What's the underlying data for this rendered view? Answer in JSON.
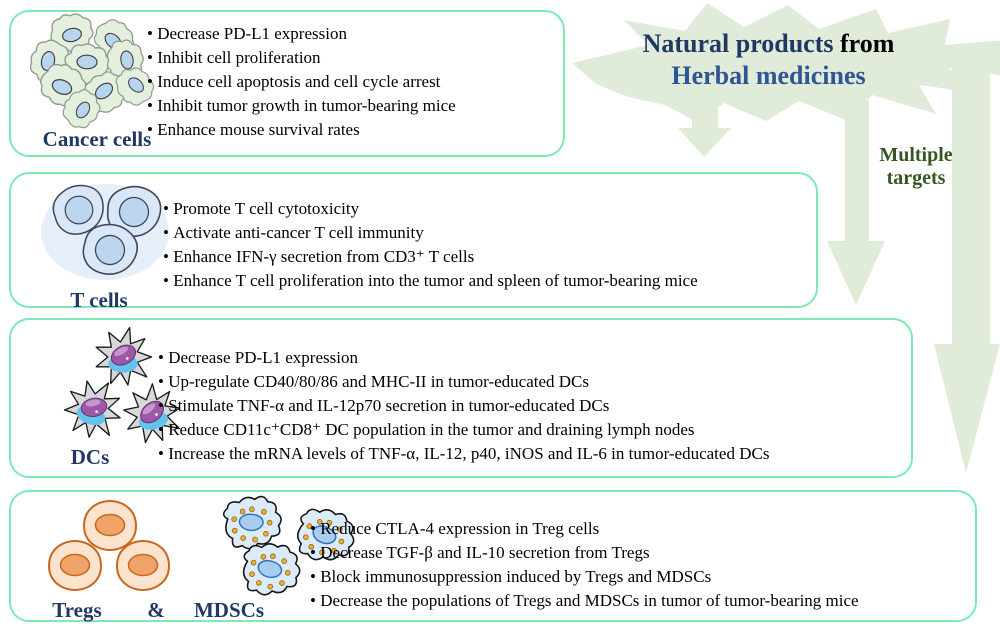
{
  "header": {
    "title_part1": "Natural products",
    "title_part2": "from",
    "title_line2": "Herbal medicines",
    "side_label": "Multiple targets"
  },
  "panels": {
    "cancer": {
      "label": "Cancer cells",
      "bullets": [
        "Decrease PD-L1 expression",
        "Inhibit cell proliferation",
        "Induce cell apoptosis and cell cycle arrest",
        "Inhibit tumor growth in tumor-bearing mice",
        "Enhance mouse survival rates"
      ]
    },
    "t_cells": {
      "label": "T cells",
      "bullets": [
        "Promote T cell cytotoxicity",
        "Activate anti-cancer T cell immunity",
        "Enhance IFN-γ secretion from CD3⁺ T cells",
        "Enhance T cell proliferation into the tumor and spleen of tumor-bearing mice"
      ]
    },
    "dcs": {
      "label": "DCs",
      "bullets": [
        "Decrease PD-L1 expression",
        "Up-regulate CD40/80/86 and MHC-II in tumor-educated DCs",
        "Stimulate TNF-α and IL-12p70 secretion in tumor-educated DCs",
        "Reduce CD11c⁺CD8⁺ DC population in the tumor and draining lymph nodes",
        "Increase the mRNA levels of TNF-α, IL-12, p40, iNOS and IL-6 in tumor-educated DCs"
      ]
    },
    "tregs_mdscs": {
      "label_left": "Tregs",
      "label_amp": "&",
      "label_right": "MDSCs",
      "bullets": [
        "Reduce CTLA-4 expression in Treg cells",
        "Decrease TGF-β and IL-10 secretion from Tregs",
        "Block immunosuppression induced by Tregs and MDSCs",
        "Decrease the populations of Tregs and MDSCs in tumor of tumor-bearing mice"
      ]
    }
  },
  "colors": {
    "panel_border": "#7deab5",
    "burst_and_arrows": "#e0ecd9",
    "title_navy": "#1f3864",
    "title_blue": "#2f5597",
    "side_label_green": "#375623",
    "cell_label_navy": "#1f3864"
  }
}
